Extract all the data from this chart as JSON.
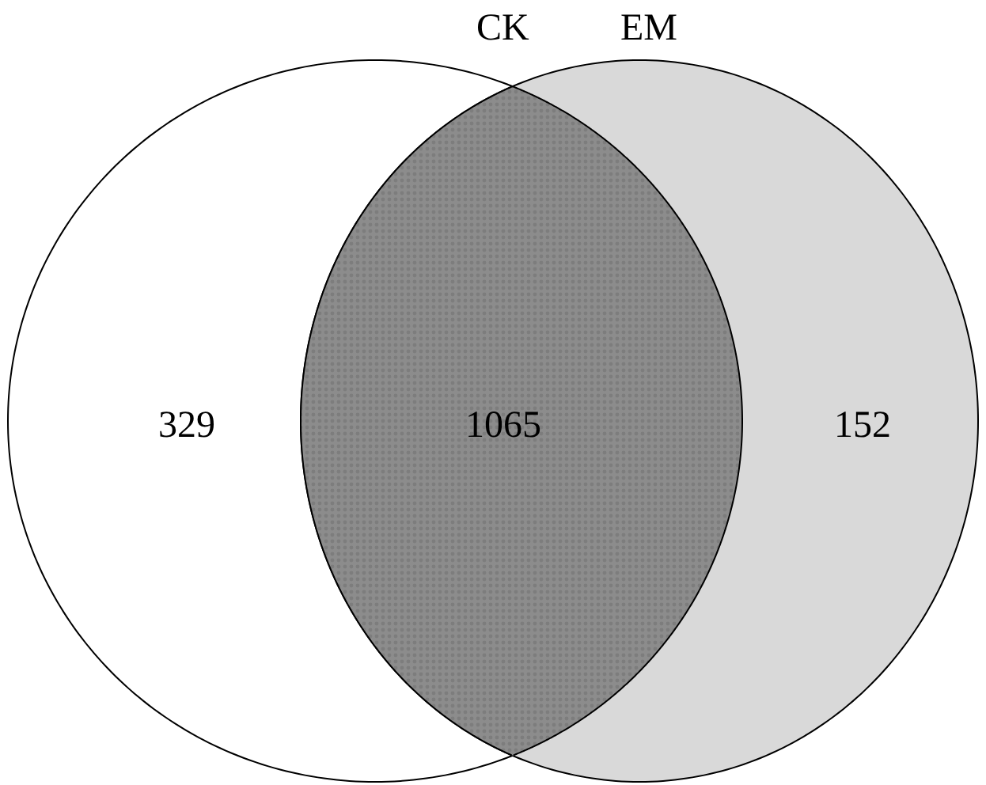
{
  "chart_data": {
    "type": "other",
    "categories": [
      null,
      null,
      null
    ],
    "values": [
      329,
      1065,
      152
    ],
    "data_labels": true,
    "colors": [
      "#ffffff",
      "#8c8c8c",
      "#d9d9d9"
    ],
    "annotations": [
      "CK",
      "EM"
    ]
  }
}
